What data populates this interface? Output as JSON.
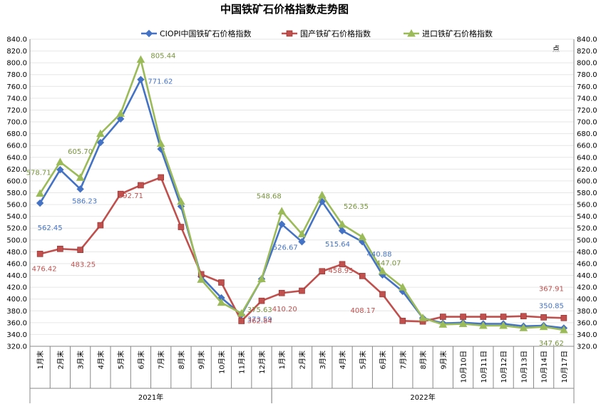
{
  "chart_data": {
    "type": "line",
    "title": "中国铁矿石价格指数走势图",
    "y_unit_label": "点",
    "ylim": [
      320,
      840
    ],
    "y_step": 20,
    "y_tick_labels": [
      "320.0",
      "340.0",
      "360.0",
      "380.0",
      "400.0",
      "420.0",
      "440.0",
      "460.0",
      "480.0",
      "500.0",
      "520.0",
      "540.0",
      "560.0",
      "580.0",
      "600.0",
      "620.0",
      "640.0",
      "660.0",
      "680.0",
      "700.0",
      "720.0",
      "740.0",
      "760.0",
      "780.0",
      "800.0",
      "820.0",
      "840.0"
    ],
    "grid": true,
    "legend_position": "top",
    "categories": [
      "1月末",
      "2月末",
      "3月末",
      "4月末",
      "5月末",
      "6月末",
      "7月末",
      "8月末",
      "9月末",
      "10月末",
      "11月末",
      "12月末",
      "1月末",
      "2月末",
      "3月末",
      "4月末",
      "5月末",
      "6月末",
      "7月末",
      "8月末",
      "9月末",
      "10月10日",
      "10月11日",
      "10月12日",
      "10月13日",
      "10月14日",
      "10月17日"
    ],
    "category_groups": [
      {
        "label": "2021年",
        "start": 0,
        "end": 11
      },
      {
        "label": "2022年",
        "start": 12,
        "end": 26
      }
    ],
    "series": [
      {
        "name": "CIOPI中国铁矿石价格指数",
        "color": "#4472c4",
        "marker": "diamond",
        "values": [
          562.45,
          619,
          586.23,
          665,
          705,
          771.62,
          654,
          557,
          438,
          402,
          373.59,
          434,
          526.67,
          497,
          565,
          515.64,
          497,
          440.88,
          413,
          368,
          359,
          360,
          358,
          358,
          354,
          355,
          350.85
        ],
        "labels": [
          {
            "index": 0,
            "text": "562.45"
          },
          {
            "index": 2,
            "text": "586.23"
          },
          {
            "index": 5,
            "text": "771.62"
          },
          {
            "index": 10,
            "text": "373.59"
          },
          {
            "index": 12,
            "text": "526.67"
          },
          {
            "index": 15,
            "text": "515.64"
          },
          {
            "index": 17,
            "text": "440.88"
          },
          {
            "index": 26,
            "text": "350.85"
          }
        ]
      },
      {
        "name": "国产铁矿石价格指数",
        "color": "#c0504d",
        "marker": "square",
        "values": [
          476.42,
          485,
          483.25,
          525,
          578,
          592.71,
          606,
          522,
          442,
          428,
          362.84,
          397,
          410.2,
          414,
          447,
          458.95,
          439,
          408.17,
          363,
          362,
          370,
          370,
          370,
          370,
          371,
          369,
          367.91
        ],
        "labels": [
          {
            "index": 0,
            "text": "476.42"
          },
          {
            "index": 2,
            "text": "483.25"
          },
          {
            "index": 5,
            "text": "592.71"
          },
          {
            "index": 10,
            "text": "362.84"
          },
          {
            "index": 12,
            "text": "410.20"
          },
          {
            "index": 15,
            "text": "458.95"
          },
          {
            "index": 17,
            "text": "408.17"
          },
          {
            "index": 26,
            "text": "367.91"
          }
        ]
      },
      {
        "name": "进口铁矿石价格指数",
        "color": "#9bbb59",
        "label_color": "#77933c",
        "marker": "triangle",
        "values": [
          578.71,
          632,
          605.7,
          680,
          714,
          805.44,
          663,
          565,
          433,
          394,
          375.63,
          434,
          548.68,
          510,
          576,
          526.35,
          505,
          447.07,
          420,
          368,
          357,
          358,
          355,
          355,
          351,
          353,
          347.62
        ],
        "labels": [
          {
            "index": 0,
            "text": "578.71"
          },
          {
            "index": 2,
            "text": "605.70"
          },
          {
            "index": 5,
            "text": "805.44"
          },
          {
            "index": 10,
            "text": "375.63"
          },
          {
            "index": 12,
            "text": "548.68"
          },
          {
            "index": 15,
            "text": "526.35"
          },
          {
            "index": 17,
            "text": "447.07"
          },
          {
            "index": 26,
            "text": "347.62"
          }
        ]
      }
    ]
  }
}
